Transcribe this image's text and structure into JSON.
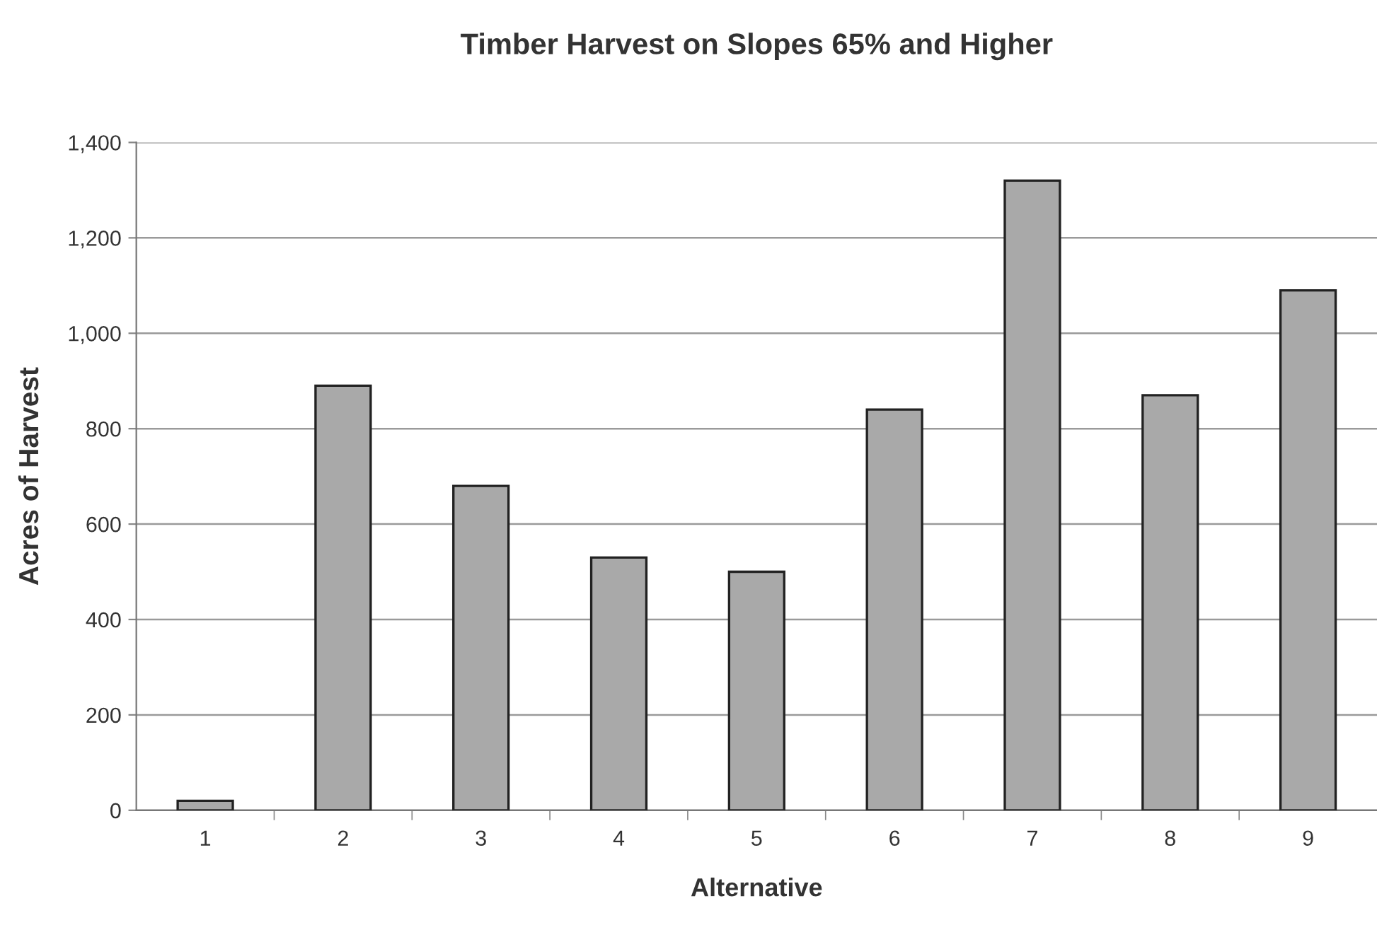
{
  "chart_data": {
    "type": "bar",
    "title": "Timber Harvest on Slopes 65% and Higher",
    "xlabel": "Alternative",
    "ylabel": "Acres of Harvest",
    "categories": [
      "1",
      "2",
      "3",
      "4",
      "5",
      "6",
      "7",
      "8",
      "9"
    ],
    "values": [
      20,
      890,
      680,
      530,
      500,
      840,
      1320,
      870,
      1090
    ],
    "color": "#a9a9a9",
    "ylim": [
      0,
      1400
    ],
    "yticks": [
      0,
      {
        "value": 200,
        "label": "200"
      },
      {
        "value": 400,
        "label": "400"
      },
      {
        "value": 600,
        "label": "600"
      },
      {
        "value": 800,
        "label": "800"
      },
      {
        "value": 1000,
        "label": "1,000"
      },
      {
        "value": 1200,
        "label": "1,200"
      },
      {
        "value": 1400,
        "label": "1,400"
      }
    ],
    "grid": "y"
  }
}
